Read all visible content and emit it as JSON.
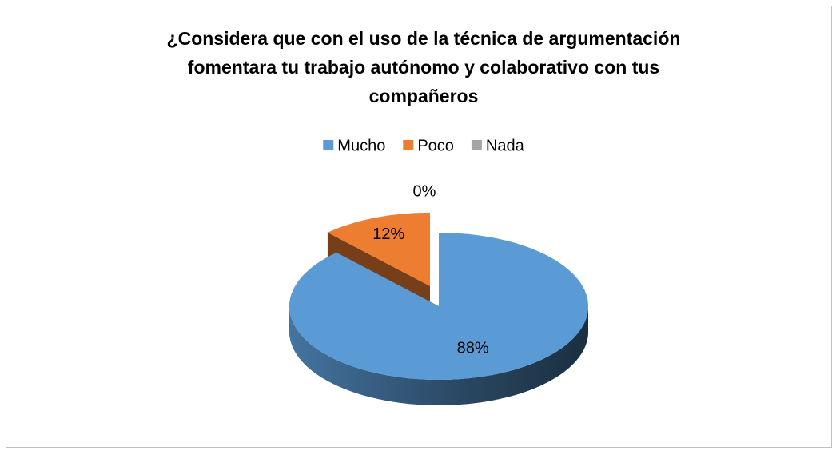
{
  "chart_data": {
    "type": "pie3d",
    "title": "¿Considera que con el uso de la técnica de argumentación fomentara tu trabajo autónomo y colaborativo con tus compañeros",
    "categories": [
      "Mucho",
      "Poco",
      "Nada"
    ],
    "values": [
      88,
      12,
      0
    ],
    "value_labels": [
      "88%",
      "12%",
      "0%"
    ],
    "colors": [
      "#5b9bd5",
      "#ed7d31",
      "#a5a5a5"
    ],
    "legend": "top"
  }
}
